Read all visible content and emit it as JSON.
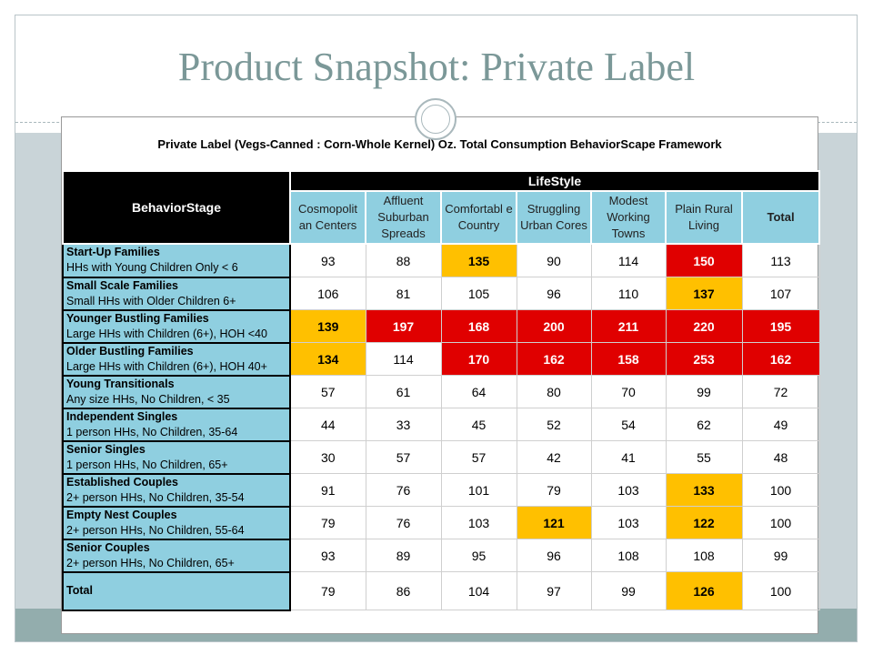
{
  "slide": {
    "title": "Product Snapshot: Private Label"
  },
  "table": {
    "caption": "Private Label (Vegs-Canned : Corn-Whole Kernel) Oz.  Total Consumption BehaviorScape Framework",
    "lifestyle_header": "LifeStyle",
    "stage_header": "BehaviorStage",
    "columns": [
      "Cosmopolit an Centers",
      "Affluent Suburban Spreads",
      "Comfortabl e Country",
      "Struggling Urban Cores",
      "Modest Working Towns",
      "Plain Rural Living",
      "Total"
    ],
    "rows": [
      {
        "name": "Start-Up Families",
        "desc": "HHs with Young Children Only < 6",
        "values": [
          "93",
          "88",
          "135",
          "90",
          "114",
          "150",
          "113"
        ],
        "highlight": [
          "",
          "",
          "hi",
          "",
          "",
          "red",
          ""
        ]
      },
      {
        "name": "Small Scale Families",
        "desc": "Small HHs with Older Children 6+",
        "values": [
          "106",
          "81",
          "105",
          "96",
          "110",
          "137",
          "107"
        ],
        "highlight": [
          "",
          "",
          "",
          "",
          "",
          "hi",
          ""
        ]
      },
      {
        "name": "Younger Bustling Families",
        "desc": "Large HHs with Children (6+), HOH <40",
        "values": [
          "139",
          "197",
          "168",
          "200",
          "211",
          "220",
          "195"
        ],
        "highlight": [
          "hi",
          "red",
          "red",
          "red",
          "red",
          "red",
          "red"
        ]
      },
      {
        "name": "Older Bustling Families",
        "desc": "Large HHs with Children (6+), HOH 40+",
        "values": [
          "134",
          "114",
          "170",
          "162",
          "158",
          "253",
          "162"
        ],
        "highlight": [
          "hi",
          "",
          "red",
          "red",
          "red",
          "red",
          "red"
        ]
      },
      {
        "name": "Young Transitionals",
        "desc": "Any size HHs, No Children, < 35",
        "values": [
          "57",
          "61",
          "64",
          "80",
          "70",
          "99",
          "72"
        ],
        "highlight": [
          "",
          "",
          "",
          "",
          "",
          "",
          ""
        ]
      },
      {
        "name": "Independent Singles",
        "desc": "1 person HHs, No Children, 35-64",
        "values": [
          "44",
          "33",
          "45",
          "52",
          "54",
          "62",
          "49"
        ],
        "highlight": [
          "",
          "",
          "",
          "",
          "",
          "",
          ""
        ]
      },
      {
        "name": "Senior Singles",
        "desc": "1 person HHs, No Children, 65+",
        "values": [
          "30",
          "57",
          "57",
          "42",
          "41",
          "55",
          "48"
        ],
        "highlight": [
          "",
          "",
          "",
          "",
          "",
          "",
          ""
        ]
      },
      {
        "name": "Established Couples",
        "desc": "2+ person HHs, No Children, 35-54",
        "values": [
          "91",
          "76",
          "101",
          "79",
          "103",
          "133",
          "100"
        ],
        "highlight": [
          "",
          "",
          "",
          "",
          "",
          "hi",
          ""
        ]
      },
      {
        "name": "Empty Nest Couples",
        "desc": "2+ person HHs, No Children, 55-64",
        "values": [
          "79",
          "76",
          "103",
          "121",
          "103",
          "122",
          "100"
        ],
        "highlight": [
          "",
          "",
          "",
          "hi",
          "",
          "hi",
          ""
        ]
      },
      {
        "name": "Senior Couples",
        "desc": "2+ person HHs, No Children, 65+",
        "values": [
          "93",
          "89",
          "95",
          "96",
          "108",
          "108",
          "99"
        ],
        "highlight": [
          "",
          "",
          "",
          "",
          "",
          "",
          ""
        ]
      }
    ],
    "total_row": {
      "name": "Total",
      "values": [
        "79",
        "86",
        "104",
        "97",
        "99",
        "126",
        "100"
      ],
      "highlight": [
        "",
        "",
        "",
        "",
        "",
        "hi",
        ""
      ]
    }
  },
  "colors": {
    "header_blue": "#8fcfe0",
    "highlight_gold": "#ffc000",
    "highlight_red": "#e00000",
    "title_color": "#7b9898"
  }
}
